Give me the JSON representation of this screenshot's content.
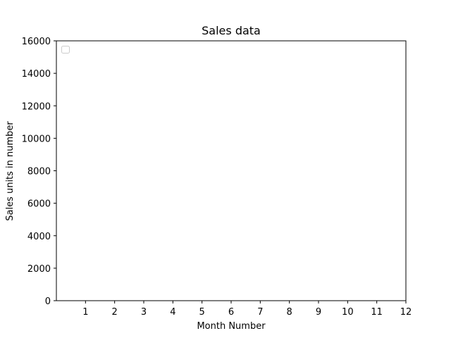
{
  "chart_data": {
    "type": "line",
    "title": "Sales data",
    "xlabel": "Month Number",
    "ylabel": "Sales units in number",
    "x_ticks": [
      1,
      2,
      3,
      4,
      5,
      6,
      7,
      8,
      9,
      10,
      11,
      12
    ],
    "y_ticks": [
      0,
      2000,
      4000,
      6000,
      8000,
      10000,
      12000,
      14000,
      16000
    ],
    "xlim": [
      0,
      12
    ],
    "ylim": [
      0,
      16000
    ],
    "series": [],
    "grid": false,
    "legend": {
      "placement": "top-left",
      "entries": []
    }
  }
}
